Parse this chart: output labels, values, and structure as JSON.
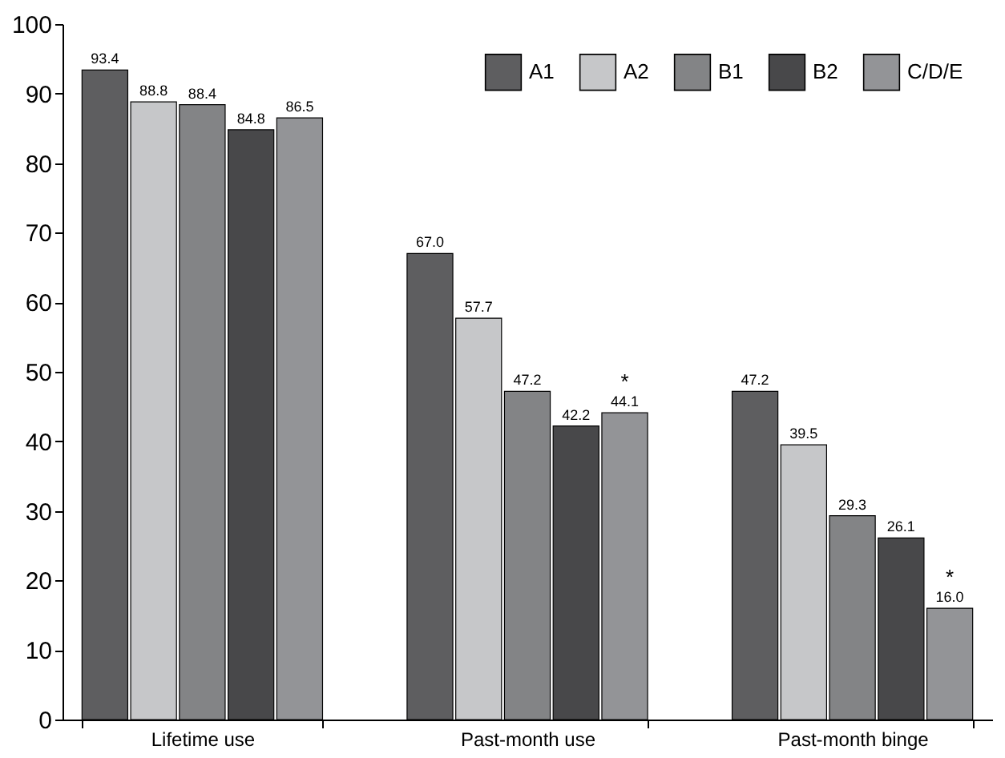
{
  "chart_data": {
    "type": "bar",
    "categories": [
      "Lifetime use",
      "Past-month use",
      "Past-month binge"
    ],
    "series": [
      {
        "name": "A1",
        "color": "#5e5e60",
        "values": [
          93.4,
          67.0,
          47.2
        ],
        "value_labels": [
          "93.4",
          "67.0",
          "47.2"
        ]
      },
      {
        "name": "A2",
        "color": "#c6c7c9",
        "values": [
          88.8,
          57.7,
          39.5
        ],
        "value_labels": [
          "88.8",
          "57.7",
          "39.5"
        ]
      },
      {
        "name": "B1",
        "color": "#838486",
        "values": [
          88.4,
          47.2,
          29.3
        ],
        "value_labels": [
          "88.4",
          "47.2",
          "29.3"
        ]
      },
      {
        "name": "B2",
        "color": "#48484a",
        "values": [
          84.8,
          42.2,
          26.1
        ],
        "value_labels": [
          "84.8",
          "42.2",
          "26.1"
        ]
      },
      {
        "name": "C/D/E",
        "color": "#939497",
        "values": [
          86.5,
          44.1,
          16.0
        ],
        "value_labels": [
          "86.5",
          "44.1",
          "16.0"
        ]
      }
    ],
    "ylim": [
      0,
      100
    ],
    "yticks": [
      0,
      10,
      20,
      30,
      40,
      50,
      60,
      70,
      80,
      90,
      100
    ],
    "legend": "top right",
    "annotations": [
      "*",
      "*"
    ]
  }
}
